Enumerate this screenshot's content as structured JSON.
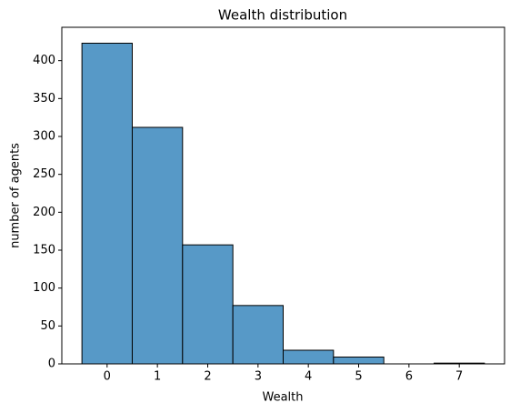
{
  "chart_data": {
    "type": "histogram",
    "title": "Wealth distribution",
    "x_label": "Wealth",
    "y_label": "number of agents",
    "bins": [
      -0.5,
      0.5,
      1.5,
      2.5,
      3.5,
      4.5,
      5.5,
      6.5,
      7.5
    ],
    "values": [
      423,
      312,
      157,
      77,
      18,
      9,
      0,
      1
    ],
    "color": "#5799c7",
    "edge_color": "#000000",
    "xlim": [
      -0.9,
      7.9
    ],
    "xticks": [
      0,
      1,
      2,
      3,
      4,
      5,
      6,
      7
    ],
    "ylim": [
      0,
      444
    ],
    "yticks": [
      0,
      50,
      100,
      150,
      200,
      250,
      300,
      350,
      400
    ],
    "grid": false
  }
}
